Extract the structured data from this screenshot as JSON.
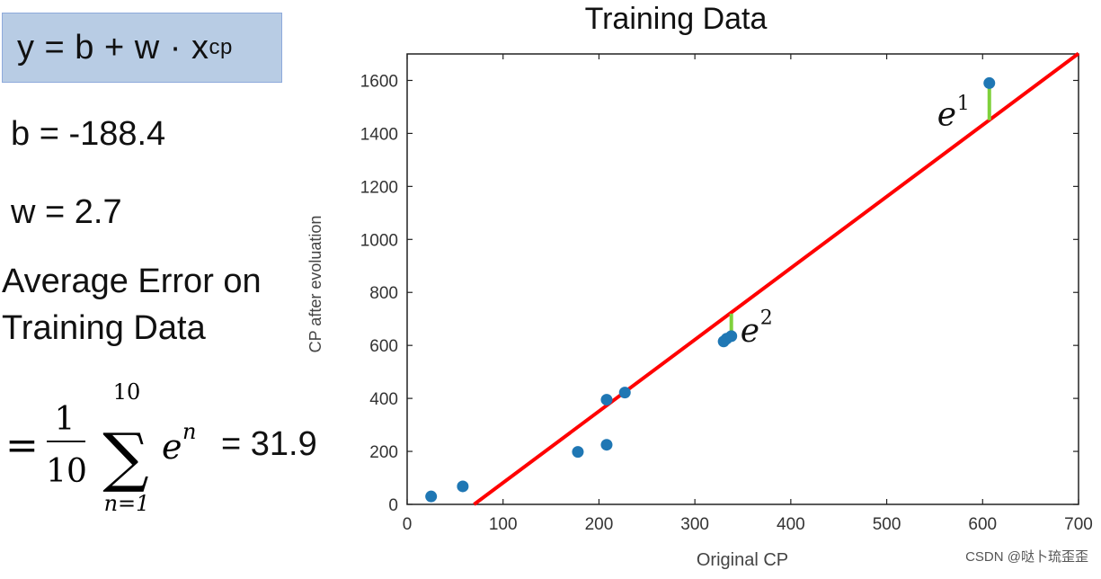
{
  "left": {
    "formula": "y = b + w · x",
    "formula_sub": "cp",
    "b_text": "b = -188.4",
    "w_text": "w = 2.7",
    "error_line1": "Average Error on",
    "error_line2": "Training Data",
    "sum_fraction_num": "1",
    "sum_fraction_den": "10",
    "sum_upper": "10",
    "sum_lower": "n=1",
    "sum_term": "e",
    "sum_term_sup": "n",
    "sum_value": "= 31.9"
  },
  "chart_data": {
    "type": "scatter",
    "title": "Training Data",
    "xlabel": "Original CP",
    "ylabel": "CP after evoluation",
    "xlim": [
      0,
      700
    ],
    "ylim": [
      0,
      1700
    ],
    "xticks": [
      0,
      100,
      200,
      300,
      400,
      500,
      600,
      700
    ],
    "yticks": [
      0,
      200,
      400,
      600,
      800,
      1000,
      1200,
      1400,
      1600
    ],
    "points": [
      {
        "x": 25,
        "y": 30
      },
      {
        "x": 58,
        "y": 68
      },
      {
        "x": 178,
        "y": 198
      },
      {
        "x": 208,
        "y": 225
      },
      {
        "x": 208,
        "y": 395
      },
      {
        "x": 227,
        "y": 422
      },
      {
        "x": 330,
        "y": 615
      },
      {
        "x": 333,
        "y": 625
      },
      {
        "x": 338,
        "y": 635
      },
      {
        "x": 607,
        "y": 1590
      }
    ],
    "fit_line": {
      "b": -188.4,
      "w": 2.7,
      "color": "#ff0000"
    },
    "error_markers": [
      {
        "x": 607,
        "y_from": 1590,
        "y_to": 1450,
        "label": "e",
        "label_sup": "1"
      },
      {
        "x": 338,
        "y_from": 635,
        "y_to": 720,
        "label": "e",
        "label_sup": "2"
      }
    ],
    "point_color": "#1f77b4",
    "error_color": "#7fd13b",
    "grid": false
  },
  "watermark": "CSDN @哒卜琉歪歪"
}
